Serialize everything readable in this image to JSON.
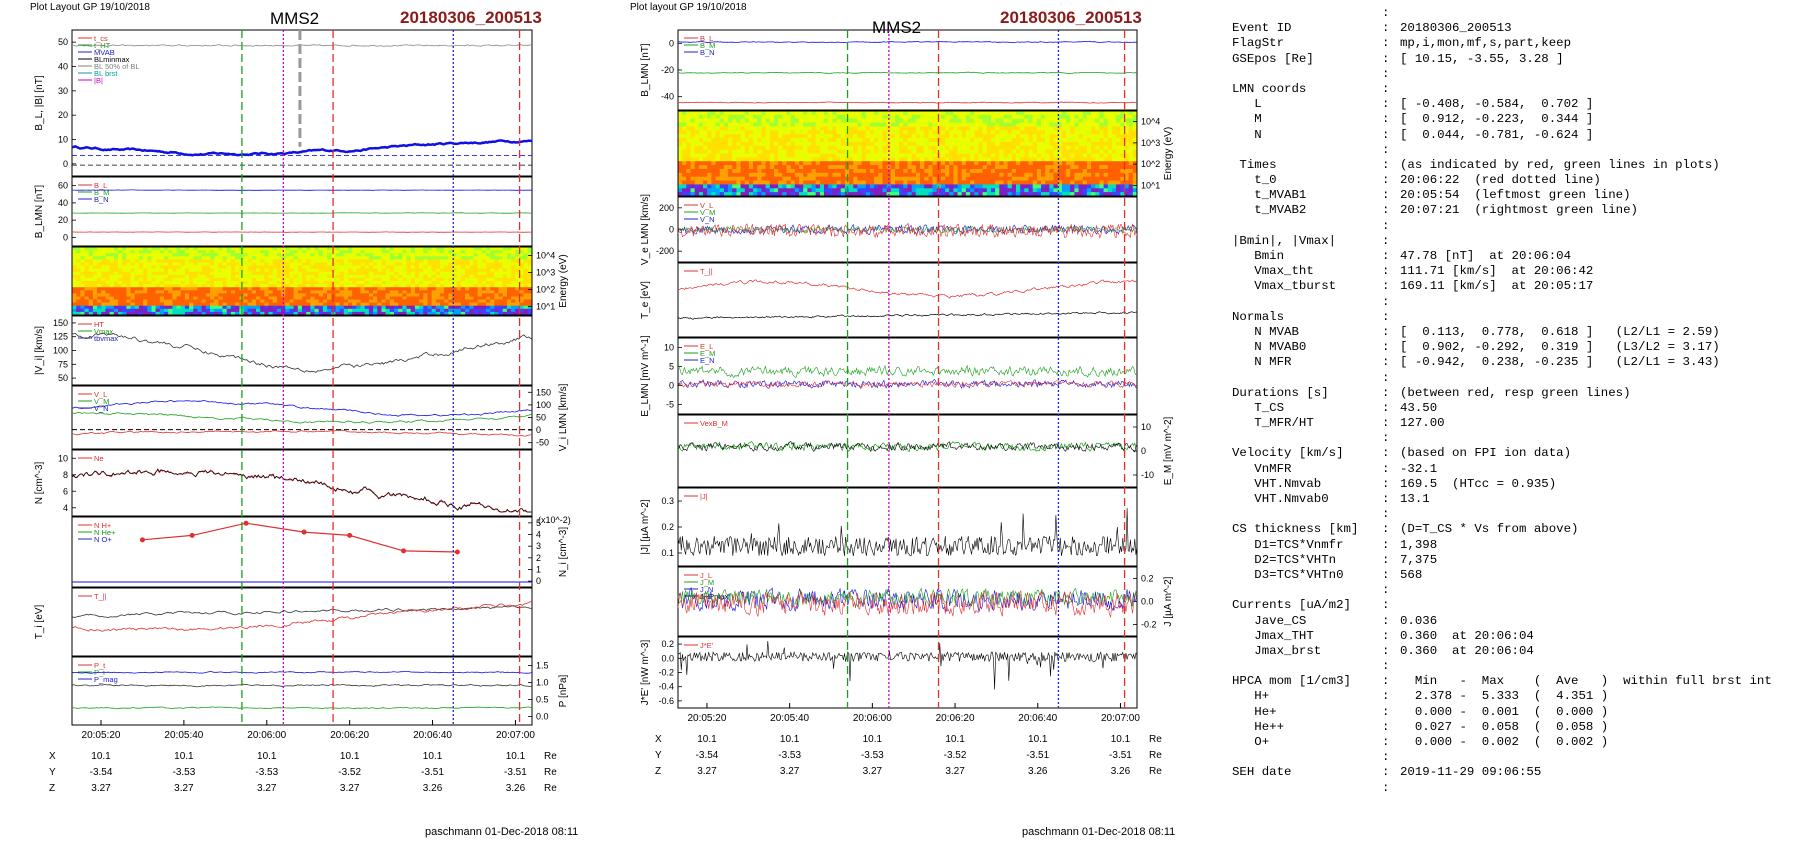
{
  "left_figure": {
    "header": "Plot Layout GP 19/10/2018",
    "spacecraft": "MMS2",
    "event": "20180306_200513",
    "signature": "paschmann 01-Dec-2018 08:11",
    "panels": [
      {
        "ylabel": "B_L, |B| [nT]",
        "ticks_left": [
          "0",
          "10",
          "20",
          "30",
          "40",
          "50"
        ],
        "legend": [
          "t_cs",
          "t_HT",
          "MVAB",
          "BLminmax",
          "BL 50% of BL",
          "BL brst",
          "|B|"
        ]
      },
      {
        "ylabel": "B_LMN [nT]",
        "ticks_left": [
          "0",
          "20",
          "40",
          "60"
        ],
        "legend": [
          "B_L",
          "B_M",
          "B_N"
        ]
      },
      {
        "ylabel": "Energy (eV)",
        "ticks_right": [
          "10^1",
          "10^2",
          "10^3",
          "10^4"
        ],
        "legend": []
      },
      {
        "ylabel": "|V_i| [km/s]",
        "ticks_left": [
          "50",
          "75",
          "100",
          "125",
          "150"
        ],
        "legend": [
          "HT",
          "Vmax",
          "tbvmax"
        ]
      },
      {
        "ylabel": "V_i LMN [km/s]",
        "ticks_right": [
          "-50",
          "0",
          "50",
          "100",
          "150"
        ],
        "legend": [
          "V_L",
          "V_M",
          "V_N"
        ]
      },
      {
        "ylabel": "N [cm^-3]",
        "ticks_left": [
          "4",
          "6",
          "8",
          "10"
        ],
        "legend": [
          "Ne"
        ]
      },
      {
        "ylabel": "N_i [cm^-3]",
        "ticks_right": [
          "0",
          "1",
          "2",
          "3",
          "4",
          "5"
        ],
        "scale_note": "(x10^-2)",
        "legend": [
          "N H+",
          "N He+",
          "N O+"
        ]
      },
      {
        "ylabel": "T_i [eV]",
        "ticks_left": [],
        "legend": [
          "T_||"
        ]
      },
      {
        "ylabel": "P [nPa]",
        "ticks_right": [
          "0.0",
          "0.5",
          "1.0",
          "1.5"
        ],
        "legend": [
          "P_t",
          "P_i",
          "P_mag"
        ]
      }
    ],
    "time_labels": [
      "20:05:20",
      "20:05:40",
      "20:06:00",
      "20:06:20",
      "20:06:40",
      "20:07:00"
    ],
    "position_table": {
      "units": "Re",
      "rows": [
        {
          "label": "X",
          "values": [
            "10.1",
            "10.1",
            "10.1",
            "10.1",
            "10.1",
            "10.1"
          ]
        },
        {
          "label": "Y",
          "values": [
            "-3.54",
            "-3.53",
            "-3.53",
            "-3.52",
            "-3.51",
            "-3.51"
          ]
        },
        {
          "label": "Z",
          "values": [
            "3.27",
            "3.27",
            "3.27",
            "3.27",
            "3.26",
            "3.26"
          ]
        }
      ]
    }
  },
  "right_figure": {
    "header": "Plot layout GP 19/10/2018",
    "spacecraft": "MMS2",
    "event": "20180306_200513",
    "signature": "paschmann 01-Dec-2018 08:11",
    "panels": [
      {
        "ylabel": "B_LMN [nT]",
        "ticks_left": [
          "-40",
          "-20",
          "0"
        ],
        "legend": [
          "B_L",
          "B_M",
          "B_N"
        ]
      },
      {
        "ylabel": "Energy (eV)",
        "ticks_right": [
          "10^1",
          "10^2",
          "10^3",
          "10^4"
        ],
        "legend": []
      },
      {
        "ylabel": "V_e LMN [km/s]",
        "ticks_left": [
          "-200",
          "0",
          "200"
        ],
        "legend": [
          "V_L",
          "V_M",
          "V_N"
        ]
      },
      {
        "ylabel": "T_e [eV]",
        "ticks_right": [],
        "legend": [
          "T_||"
        ]
      },
      {
        "ylabel": "E_LMN [mV m^-1]",
        "ticks_left": [
          "-5",
          "0",
          "5",
          "10"
        ],
        "legend": [
          "E_L",
          "E_M",
          "E_N"
        ]
      },
      {
        "ylabel": "E_M [mV m^-2]",
        "ticks_right": [
          "-10",
          "0",
          "10"
        ],
        "legend": [
          "VexB_M"
        ]
      },
      {
        "ylabel": "|J| [µA m^-2]",
        "ticks_left": [
          "0.1",
          "0.2",
          "0.3"
        ],
        "legend": [
          "|J|"
        ]
      },
      {
        "ylabel": "J [µA m^-2]",
        "ticks_right": [
          "-0.2",
          "0.0",
          "0.2"
        ],
        "legend": [
          "J_L",
          "J_M",
          "J_N",
          "JHPmax"
        ]
      },
      {
        "ylabel": "J*E' [nW m^-3]",
        "ticks_left": [
          "-0.6",
          "-0.4",
          "-0.2",
          "0.0",
          "0.2"
        ],
        "legend": [
          "J*E'"
        ]
      }
    ],
    "time_labels": [
      "20:05:20",
      "20:05:40",
      "20:06:00",
      "20:06:20",
      "20:06:40",
      "20:07:00"
    ],
    "position_table": {
      "units": "Re",
      "rows": [
        {
          "label": "X",
          "values": [
            "10.1",
            "10.1",
            "10.1",
            "10.1",
            "10.1",
            "10.1"
          ]
        },
        {
          "label": "Y",
          "values": [
            "-3.54",
            "-3.53",
            "-3.53",
            "-3.52",
            "-3.51",
            "-3.51"
          ]
        },
        {
          "label": "Z",
          "values": [
            "3.27",
            "3.27",
            "3.27",
            "3.27",
            "3.26",
            "3.26"
          ]
        }
      ]
    }
  },
  "chart_data": [
    {
      "type": "line",
      "title": "MMS2 20180306_200513 (left figure)",
      "x_range": [
        "20:05:13",
        "20:07:04"
      ],
      "markers": [
        {
          "time": "20:05:54",
          "color": "#1aa01a",
          "style": "dashed",
          "label": "t_MVAB1"
        },
        {
          "time": "20:06:04",
          "color": "#cc00cc",
          "style": "dotted"
        },
        {
          "time": "20:06:16",
          "color": "#e03030",
          "style": "dashed"
        },
        {
          "time": "20:06:45",
          "color": "#2020d0",
          "style": "dotted"
        },
        {
          "time": "20:07:01",
          "color": "#e03030",
          "style": "dashed"
        }
      ],
      "ni_hplus": {
        "time": [
          "20:05:30",
          "20:05:42",
          "20:05:55",
          "20:06:09",
          "20:06:20",
          "20:06:33",
          "20:06:46"
        ],
        "values": [
          3.9,
          4.3,
          5.4,
          4.6,
          4.3,
          2.9,
          2.8
        ],
        "unit": "x10^-2 cm^-3"
      },
      "b_total_approx": [
        6,
        5,
        3,
        6,
        4,
        2,
        1,
        4,
        5,
        7,
        8
      ],
      "vi_magnitude_approx": [
        135,
        125,
        150,
        120,
        105,
        65,
        55,
        45,
        62,
        75,
        95,
        80,
        95
      ]
    },
    {
      "type": "line",
      "title": "MMS2 20180306_200513 (right figure)",
      "x_range": [
        "20:05:13",
        "20:07:04"
      ],
      "markers": [
        {
          "time": "20:05:54",
          "color": "#1aa01a",
          "style": "dashed"
        },
        {
          "time": "20:06:04",
          "color": "#cc00cc",
          "style": "dotted"
        },
        {
          "time": "20:06:16",
          "color": "#e03030",
          "style": "dashed"
        },
        {
          "time": "20:06:45",
          "color": "#2020d0",
          "style": "dotted"
        },
        {
          "time": "20:07:01",
          "color": "#e03030",
          "style": "dashed"
        }
      ]
    }
  ],
  "info": {
    "rows": [
      {
        "k": "Event ID",
        "v": "20180306_200513"
      },
      {
        "k": "FlagStr",
        "v": "mp,i,mon,mf,s,part,keep"
      },
      {
        "k": "GSEpos [Re]",
        "v": "[ 10.15, -3.55, 3.28 ]"
      },
      {
        "k": "",
        "v": ""
      },
      {
        "k": "LMN coords",
        "v": ""
      },
      {
        "k": "   L",
        "v": "[ -0.408, -0.584,  0.702 ]"
      },
      {
        "k": "   M",
        "v": "[  0.912, -0.223,  0.344 ]"
      },
      {
        "k": "   N",
        "v": "[  0.044, -0.781, -0.624 ]"
      },
      {
        "k": "",
        "v": ""
      },
      {
        "k": " Times",
        "v": "(as indicated by red, green lines in plots)"
      },
      {
        "k": "   t_0",
        "v": "20:06:22  (red dotted line)"
      },
      {
        "k": "   t_MVAB1",
        "v": "20:05:54  (leftmost green line)"
      },
      {
        "k": "   t_MVAB2",
        "v": "20:07:21  (rightmost green line)"
      },
      {
        "k": "",
        "v": ""
      },
      {
        "k": "|Bmin|, |Vmax|",
        "v": ""
      },
      {
        "k": "   Bmin",
        "v": "47.78 [nT]  at 20:06:04"
      },
      {
        "k": "   Vmax_tht",
        "v": "111.71 [km/s]  at 20:06:42"
      },
      {
        "k": "   Vmax_tburst",
        "v": "169.11 [km/s]  at 20:05:17"
      },
      {
        "k": "",
        "v": ""
      },
      {
        "k": "Normals",
        "v": ""
      },
      {
        "k": "   N MVAB",
        "v": "[  0.113,  0.778,  0.618 ]   (L2/L1 = 2.59)"
      },
      {
        "k": "   N MVAB0",
        "v": "[  0.902, -0.292,  0.319 ]   (L3/L2 = 3.17)"
      },
      {
        "k": "   N MFR",
        "v": "[ -0.942,  0.238, -0.235 ]   (L2/L1 = 3.43)"
      },
      {
        "k": "",
        "v": ""
      },
      {
        "k": "Durations [s]",
        "v": "(between red, resp green lines)"
      },
      {
        "k": "   T_CS",
        "v": "43.50"
      },
      {
        "k": "   T_MFR/HT",
        "v": "127.00"
      },
      {
        "k": "",
        "v": ""
      },
      {
        "k": "Velocity [km/s]",
        "v": "(based on FPI ion data)"
      },
      {
        "k": "   VnMFR",
        "v": "-32.1"
      },
      {
        "k": "   VHT.Nmvab",
        "v": "169.5  (HTcc = 0.935)"
      },
      {
        "k": "   VHT.Nmvab0",
        "v": "13.1"
      },
      {
        "k": "",
        "v": ""
      },
      {
        "k": "CS thickness [km]",
        "v": "(D=T_CS * Vs from above)"
      },
      {
        "k": "   D1=TCS*Vnmfr",
        "v": "1,398"
      },
      {
        "k": "   D2=TCS*VHTn",
        "v": "7,375"
      },
      {
        "k": "   D3=TCS*VHTn0",
        "v": "568"
      },
      {
        "k": "",
        "v": ""
      },
      {
        "k": "Currents [uA/m2]",
        "v": ""
      },
      {
        "k": "   Jave_CS",
        "v": "0.036"
      },
      {
        "k": "   Jmax_THT",
        "v": "0.360  at 20:06:04"
      },
      {
        "k": "   Jmax_brst",
        "v": "0.360  at 20:06:04"
      },
      {
        "k": "",
        "v": ""
      },
      {
        "k": "HPCA mom [1/cm3]",
        "v": "  Min   -  Max    (  Ave   )  within full brst int"
      },
      {
        "k": "   H+",
        "v": "  2.378 -  5.333  (  4.351 )"
      },
      {
        "k": "   He+",
        "v": "  0.000 -  0.001  (  0.000 )"
      },
      {
        "k": "   He++",
        "v": "  0.027 -  0.058  (  0.058 )"
      },
      {
        "k": "   O+",
        "v": "  0.000 -  0.002  (  0.002 )"
      },
      {
        "k": "",
        "v": ""
      },
      {
        "k": "SEH date",
        "v": "2019-11-29 09:06:55"
      },
      {
        "k": "",
        "v": ""
      }
    ]
  }
}
